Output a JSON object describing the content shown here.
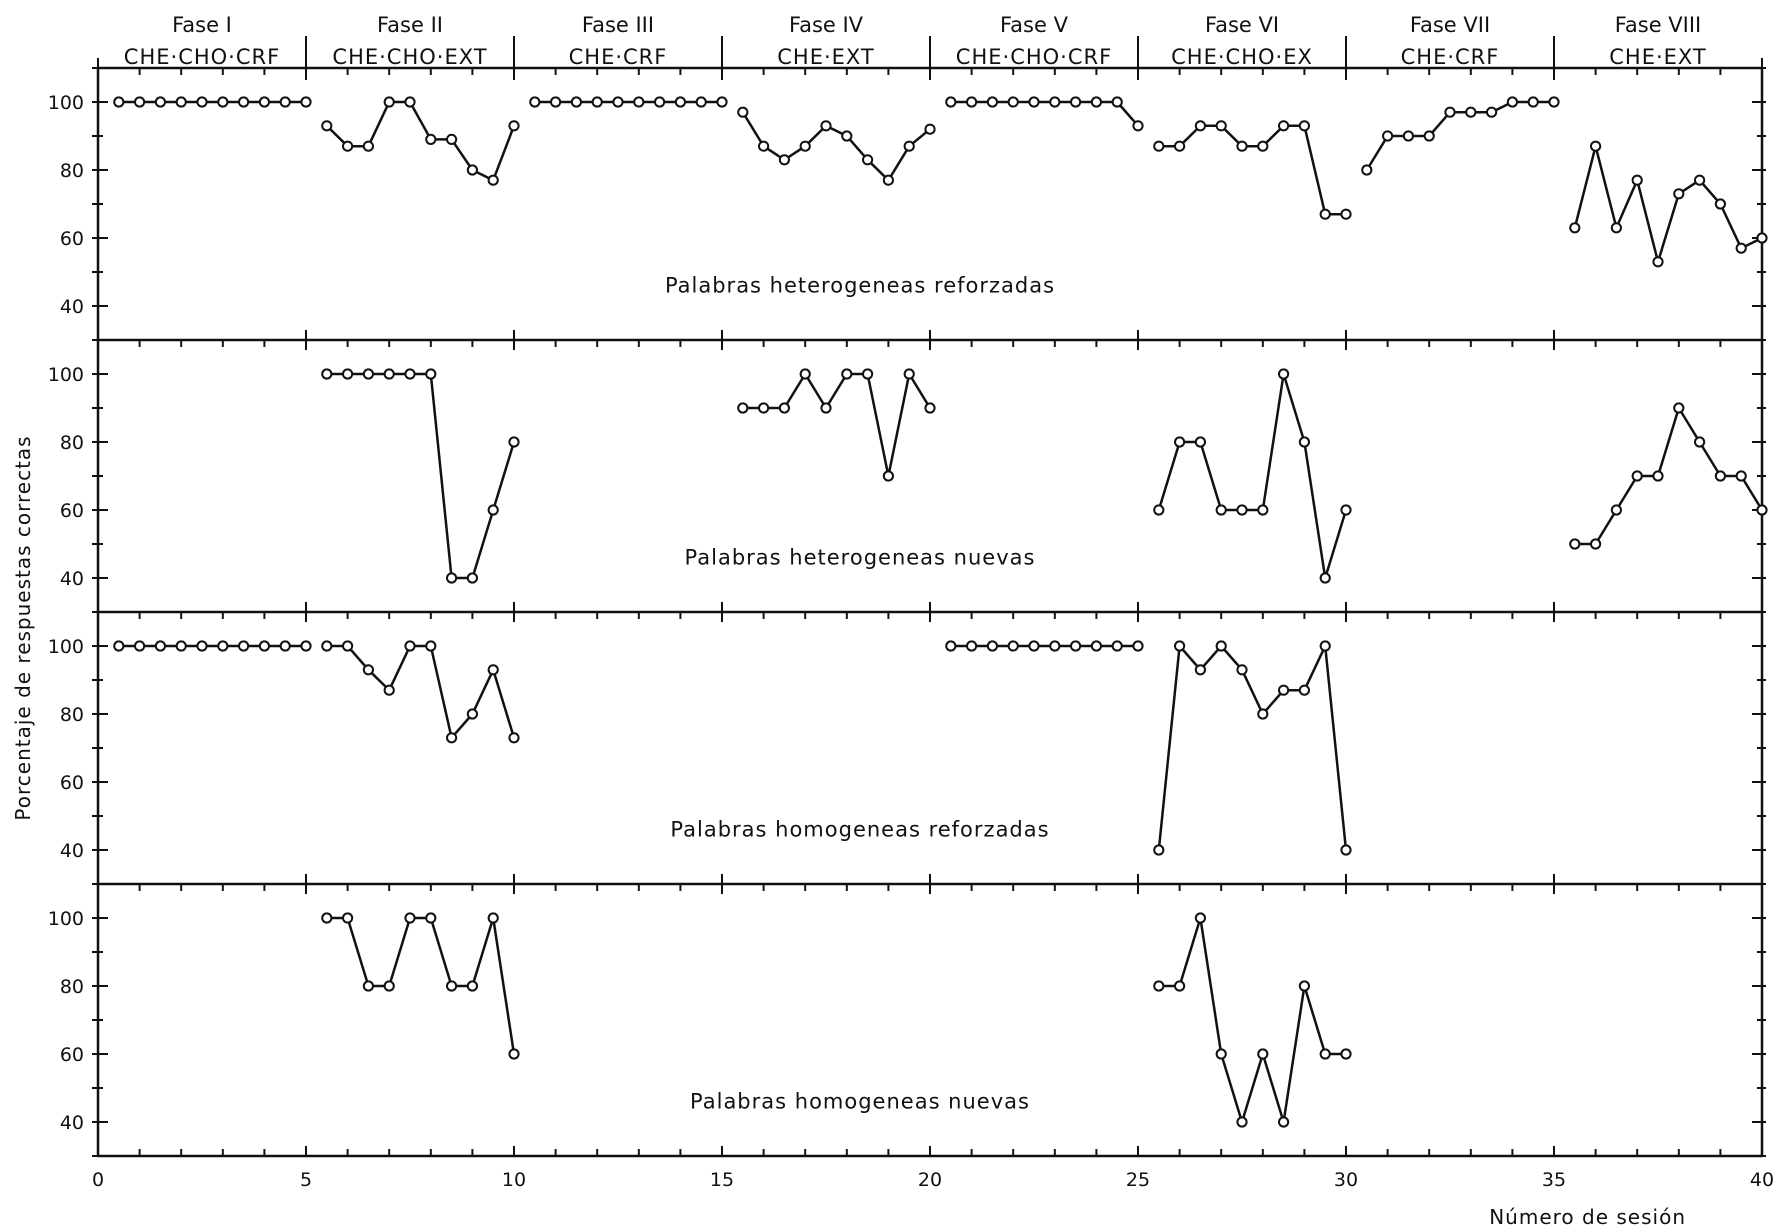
{
  "chart_data": {
    "type": "line",
    "xlabel": "Número de sesión",
    "ylabel": "Porcentaje de respuestas correctas",
    "xlim": [
      0,
      40
    ],
    "ylim": [
      30,
      110
    ],
    "x_ticks": [
      "0",
      "5",
      "10",
      "15",
      "20",
      "25",
      "30",
      "35",
      "40"
    ],
    "y_ticks": [
      "100",
      "80",
      "60",
      "40"
    ],
    "phases": [
      {
        "name": "Fase I",
        "condition": "CHE·CHO·CRF",
        "start": 0,
        "end": 5
      },
      {
        "name": "Fase II",
        "condition": "CHE·CHO·EXT",
        "start": 5,
        "end": 10
      },
      {
        "name": "Fase III",
        "condition": "CHE·CRF",
        "start": 10,
        "end": 15
      },
      {
        "name": "Fase IV",
        "condition": "CHE·EXT",
        "start": 15,
        "end": 20
      },
      {
        "name": "Fase V",
        "condition": "CHE·CHO·CRF",
        "start": 20,
        "end": 25
      },
      {
        "name": "Fase VI",
        "condition": "CHE·CHO·EX",
        "start": 25,
        "end": 30
      },
      {
        "name": "Fase VII",
        "condition": "CHE·CRF",
        "start": 30,
        "end": 35
      },
      {
        "name": "Fase VIII",
        "condition": "CHE·EXT",
        "start": 35,
        "end": 40
      }
    ],
    "panels": [
      {
        "label": "Palabras heterogeneas reforzadas",
        "segments": [
          {
            "x": [
              0.5,
              1,
              1.5,
              2,
              2.5,
              3,
              3.5,
              4,
              4.5,
              5
            ],
            "y": [
              100,
              100,
              100,
              100,
              100,
              100,
              100,
              100,
              100,
              100
            ]
          },
          {
            "x": [
              5.5,
              6,
              6.5,
              7,
              7.5,
              8,
              8.5,
              9,
              9.5,
              10
            ],
            "y": [
              93,
              87,
              87,
              100,
              100,
              89,
              89,
              80,
              77,
              93
            ]
          },
          {
            "x": [
              10.5,
              11,
              11.5,
              12,
              12.5,
              13,
              13.5,
              14,
              14.5,
              15
            ],
            "y": [
              100,
              100,
              100,
              100,
              100,
              100,
              100,
              100,
              100,
              100
            ]
          },
          {
            "x": [
              15.5,
              16,
              16.5,
              17,
              17.5,
              18,
              18.5,
              19,
              19.5,
              20
            ],
            "y": [
              97,
              87,
              83,
              87,
              93,
              90,
              83,
              77,
              87,
              92
            ]
          },
          {
            "x": [
              20.5,
              21,
              21.5,
              22,
              22.5,
              23,
              23.5,
              24,
              24.5,
              25
            ],
            "y": [
              100,
              100,
              100,
              100,
              100,
              100,
              100,
              100,
              100,
              93
            ]
          },
          {
            "x": [
              25.5,
              26,
              26.5,
              27,
              27.5,
              28,
              28.5,
              29,
              29.5,
              30
            ],
            "y": [
              87,
              87,
              93,
              93,
              87,
              87,
              93,
              93,
              67,
              67
            ]
          },
          {
            "x": [
              30.5,
              31,
              31.5,
              32,
              32.5,
              33,
              33.5,
              34,
              34.5,
              35
            ],
            "y": [
              80,
              90,
              90,
              90,
              97,
              97,
              97,
              100,
              100,
              100
            ]
          },
          {
            "x": [
              35.5,
              36,
              36.5,
              37,
              37.5,
              38,
              38.5,
              39,
              39.5,
              40
            ],
            "y": [
              63,
              87,
              63,
              77,
              53,
              73,
              77,
              70,
              57,
              60
            ]
          }
        ]
      },
      {
        "label": "Palabras heterogeneas nuevas",
        "segments": [
          {
            "x": [
              5.5,
              6,
              6.5,
              7,
              7.5,
              8,
              8.5,
              9,
              9.5,
              10
            ],
            "y": [
              100,
              100,
              100,
              100,
              100,
              100,
              40,
              40,
              60,
              80
            ]
          },
          {
            "x": [
              15.5,
              16,
              16.5,
              17,
              17.5,
              18,
              18.5,
              19,
              19.5,
              20
            ],
            "y": [
              90,
              90,
              90,
              100,
              90,
              100,
              100,
              70,
              100,
              90
            ]
          },
          {
            "x": [
              25.5,
              26,
              26.5,
              27,
              27.5,
              28,
              28.5,
              29,
              29.5,
              30
            ],
            "y": [
              60,
              80,
              80,
              60,
              60,
              60,
              100,
              80,
              40,
              60
            ]
          },
          {
            "x": [
              35.5,
              36,
              36.5,
              37,
              37.5,
              38,
              38.5,
              39,
              39.5,
              40
            ],
            "y": [
              50,
              50,
              60,
              70,
              70,
              90,
              80,
              70,
              70,
              60
            ]
          }
        ]
      },
      {
        "label": "Palabras homogeneas reforzadas",
        "segments": [
          {
            "x": [
              0.5,
              1,
              1.5,
              2,
              2.5,
              3,
              3.5,
              4,
              4.5,
              5
            ],
            "y": [
              100,
              100,
              100,
              100,
              100,
              100,
              100,
              100,
              100,
              100
            ]
          },
          {
            "x": [
              5.5,
              6,
              6.5,
              7,
              7.5,
              8,
              8.5,
              9,
              9.5,
              10
            ],
            "y": [
              100,
              100,
              93,
              87,
              100,
              100,
              73,
              80,
              93,
              73
            ]
          },
          {
            "x": [
              20.5,
              21,
              21.5,
              22,
              22.5,
              23,
              23.5,
              24,
              24.5,
              25
            ],
            "y": [
              100,
              100,
              100,
              100,
              100,
              100,
              100,
              100,
              100,
              100
            ]
          },
          {
            "x": [
              25.5,
              26,
              26.5,
              27,
              27.5,
              28,
              28.5,
              29,
              29.5,
              30
            ],
            "y": [
              40,
              100,
              93,
              100,
              93,
              80,
              87,
              87,
              100,
              40
            ]
          }
        ]
      },
      {
        "label": "Palabras homogeneas nuevas",
        "segments": [
          {
            "x": [
              5.5,
              6,
              6.5,
              7,
              7.5,
              8,
              8.5,
              9,
              9.5,
              10
            ],
            "y": [
              100,
              100,
              80,
              80,
              100,
              100,
              80,
              80,
              100,
              60
            ]
          },
          {
            "x": [
              25.5,
              26,
              26.5,
              27,
              27.5,
              28,
              28.5,
              29,
              29.5,
              30
            ],
            "y": [
              80,
              80,
              100,
              60,
              40,
              60,
              40,
              80,
              60,
              60
            ]
          }
        ]
      }
    ]
  }
}
